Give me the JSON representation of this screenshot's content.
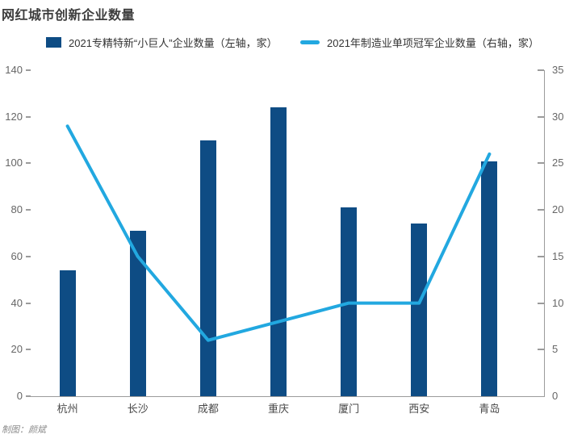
{
  "title": "网红城市创新企业数量",
  "credit": "制图：颜斌",
  "legend": [
    {
      "label": "2021专精特新“小巨人”企业数量（左轴，家）",
      "marker": "square"
    },
    {
      "label": "2021年制造业单项冠军企业数量（右轴，家）",
      "marker": "line"
    }
  ],
  "colors": {
    "bar": "#0e4c84",
    "line": "#22a8e0",
    "axis": "#9b9b9b",
    "tick_text": "#666666",
    "category_text": "#4a4a4a",
    "title_text": "#3d3d3d",
    "credit_text": "#8a8a8a",
    "background": "#ffffff"
  },
  "chart_data": {
    "type": "bar",
    "subtype": "bar+line dual axis",
    "title": "网红城市创新企业数量",
    "categories": [
      "杭州",
      "长沙",
      "成都",
      "重庆",
      "厦门",
      "西安",
      "青岛"
    ],
    "series": [
      {
        "name": "2021专精特新“小巨人”企业数量（左轴，家）",
        "type": "bar",
        "axis": "left",
        "values": [
          54,
          71,
          110,
          124,
          81,
          74,
          101
        ]
      },
      {
        "name": "2021年制造业单项冠军企业数量（右轴，家）",
        "type": "line",
        "axis": "right",
        "values": [
          29,
          15,
          6,
          8,
          10,
          10,
          26
        ]
      }
    ],
    "left_axis": {
      "min": 0,
      "max": 140,
      "ticks": [
        0,
        20,
        40,
        60,
        80,
        100,
        120,
        140
      ]
    },
    "right_axis": {
      "min": 0,
      "max": 35,
      "ticks": [
        0,
        5,
        10,
        15,
        20,
        25,
        30,
        35
      ]
    },
    "grid": false,
    "legend_position": "top"
  }
}
